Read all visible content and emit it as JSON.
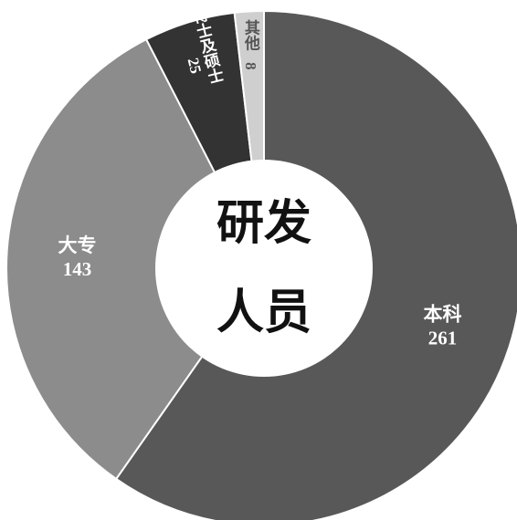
{
  "chart_data": {
    "type": "pie",
    "center_label": [
      "研发",
      "人员"
    ],
    "categories": [
      "本科",
      "大专",
      "博士及硕士",
      "其他"
    ],
    "values": [
      261,
      143,
      25,
      8
    ],
    "colors": [
      "#585858",
      "#8c8c8c",
      "#333333",
      "#cfcfcf"
    ],
    "label_colors": [
      "#ffffff",
      "#ffffff",
      "#ffffff",
      "#555555"
    ]
  }
}
